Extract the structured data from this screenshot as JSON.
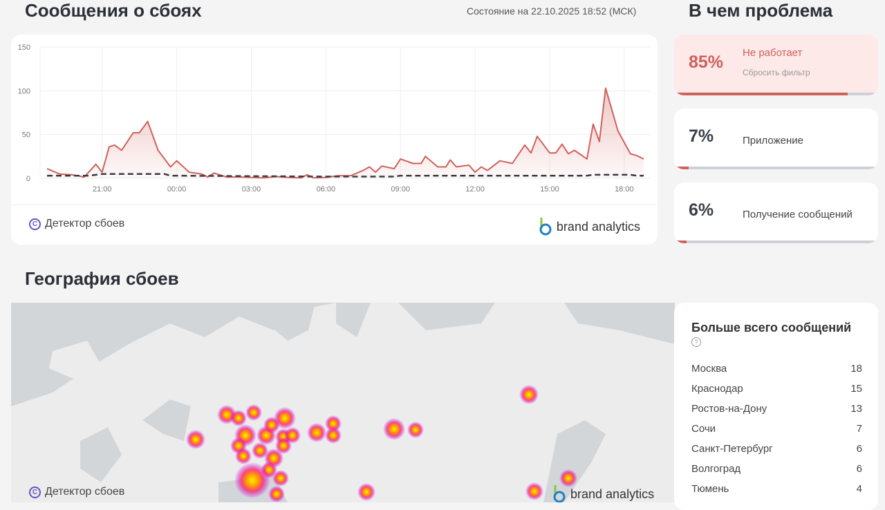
{
  "header": {
    "title": "Сообщения о сбоях",
    "status": "Состояние на 22.10.2025 18:52 (МСК)"
  },
  "problems": {
    "title": "В чем проблема",
    "reset_label": "Сбросить фильтр",
    "items": [
      {
        "percent": "85%",
        "label": "Не работает",
        "value": 85,
        "active": true
      },
      {
        "percent": "7%",
        "label": "Приложение",
        "value": 7,
        "active": false
      },
      {
        "percent": "6%",
        "label": "Получение сообщений",
        "value": 6,
        "active": false
      }
    ]
  },
  "geo": {
    "title": "География сбоев"
  },
  "footer": {
    "copyright": "Детектор сбоев",
    "brand": "brand analytics"
  },
  "top_list": {
    "title": "Больше всего сообщений",
    "rows": [
      {
        "city": "Москва",
        "count": "18"
      },
      {
        "city": "Краснодар",
        "count": "15"
      },
      {
        "city": "Ростов-на-Дону",
        "count": "13"
      },
      {
        "city": "Сочи",
        "count": "7"
      },
      {
        "city": "Санкт-Петербург",
        "count": "6"
      },
      {
        "city": "Волгоград",
        "count": "6"
      },
      {
        "city": "Тюмень",
        "count": "4"
      }
    ]
  },
  "colors": {
    "accent": "#d0605a",
    "baseline": "#3a3a40",
    "brand": "#6a4fc7"
  },
  "chart_data": {
    "type": "area",
    "ylim": [
      0,
      150
    ],
    "yticks": [
      0,
      50,
      100,
      150
    ],
    "xticks": [
      "21:00",
      "00:00",
      "03:00",
      "06:00",
      "09:00",
      "12:00",
      "15:00",
      "18:00"
    ],
    "grid": true,
    "series": [
      {
        "style": "solid-area",
        "points": [
          [
            "18:47",
            11
          ],
          [
            "19:17",
            5
          ],
          [
            "19:47",
            4
          ],
          [
            "20:17",
            1.5
          ],
          [
            "20:45",
            16
          ],
          [
            "21:00",
            7
          ],
          [
            "21:17",
            36
          ],
          [
            "21:30",
            38
          ],
          [
            "21:47",
            32
          ],
          [
            "22:15",
            52
          ],
          [
            "22:30",
            52
          ],
          [
            "22:50",
            65
          ],
          [
            "23:15",
            32
          ],
          [
            "23:45",
            13
          ],
          [
            "00:00",
            20
          ],
          [
            "00:30",
            7
          ],
          [
            "01:00",
            5
          ],
          [
            "01:15",
            1.5
          ],
          [
            "01:30",
            6
          ],
          [
            "02:00",
            1.5
          ],
          [
            "02:30",
            1.5
          ],
          [
            "03:00",
            1
          ],
          [
            "03:30",
            0.5
          ],
          [
            "04:00",
            2
          ],
          [
            "04:30",
            1
          ],
          [
            "05:00",
            0.5
          ],
          [
            "05:15",
            4
          ],
          [
            "05:30",
            0.5
          ],
          [
            "06:00",
            1
          ],
          [
            "06:30",
            3
          ],
          [
            "07:00",
            3
          ],
          [
            "07:30",
            9
          ],
          [
            "07:45",
            13
          ],
          [
            "08:00",
            7
          ],
          [
            "08:15",
            14
          ],
          [
            "08:45",
            11
          ],
          [
            "09:00",
            22
          ],
          [
            "09:30",
            17
          ],
          [
            "09:50",
            17
          ],
          [
            "10:00",
            25
          ],
          [
            "10:30",
            13
          ],
          [
            "10:50",
            13
          ],
          [
            "11:00",
            21
          ],
          [
            "11:15",
            13
          ],
          [
            "11:45",
            15
          ],
          [
            "12:00",
            7
          ],
          [
            "12:15",
            13
          ],
          [
            "12:30",
            9
          ],
          [
            "13:00",
            20
          ],
          [
            "13:30",
            17
          ],
          [
            "14:00",
            38
          ],
          [
            "14:15",
            29
          ],
          [
            "14:30",
            48
          ],
          [
            "15:00",
            29
          ],
          [
            "15:15",
            29
          ],
          [
            "15:30",
            39
          ],
          [
            "15:45",
            28
          ],
          [
            "16:00",
            32
          ],
          [
            "16:30",
            22
          ],
          [
            "16:45",
            62
          ],
          [
            "17:00",
            42
          ],
          [
            "17:15",
            103
          ],
          [
            "17:45",
            54
          ],
          [
            "18:15",
            28
          ],
          [
            "18:30",
            26
          ],
          [
            "18:47",
            22
          ]
        ]
      },
      {
        "style": "dashed",
        "points": [
          [
            "18:47",
            3
          ],
          [
            "20:30",
            3
          ],
          [
            "21:00",
            5
          ],
          [
            "23:30",
            5
          ],
          [
            "23:45",
            3
          ],
          [
            "06:00",
            2
          ],
          [
            "08:45",
            2
          ],
          [
            "09:00",
            3
          ],
          [
            "16:30",
            3
          ],
          [
            "16:45",
            4
          ],
          [
            "18:15",
            4
          ],
          [
            "18:30",
            3
          ],
          [
            "18:47",
            3
          ]
        ]
      }
    ]
  }
}
